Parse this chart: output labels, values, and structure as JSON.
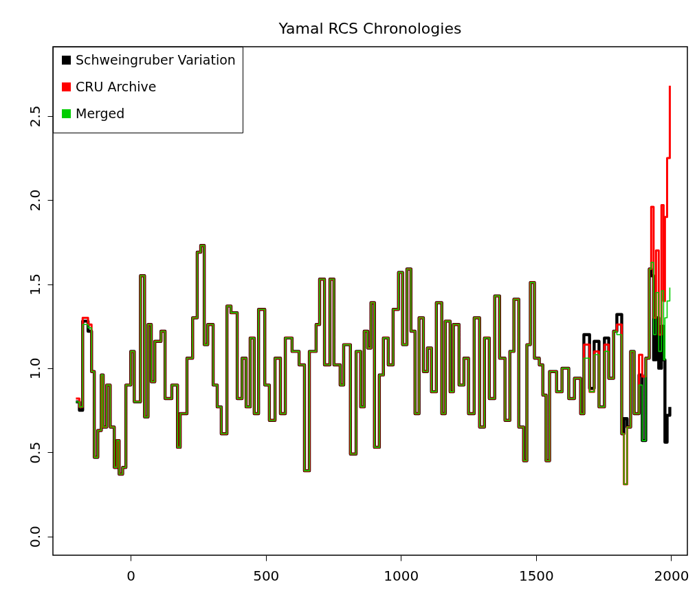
{
  "chart_data": {
    "type": "step",
    "title": "Yamal RCS Chronologies",
    "x": [
      -203,
      -190,
      -178,
      -158,
      -145,
      -135,
      -122,
      -109,
      -102,
      -89,
      -76,
      -61,
      -51,
      -43,
      -30,
      -18,
      0,
      13,
      36,
      51,
      64,
      76,
      89,
      112,
      127,
      152,
      173,
      183,
      208,
      229,
      246,
      259,
      272,
      285,
      305,
      320,
      335,
      356,
      371,
      394,
      412,
      427,
      442,
      457,
      473,
      496,
      513,
      534,
      554,
      572,
      597,
      623,
      643,
      661,
      686,
      699,
      717,
      737,
      752,
      775,
      788,
      813,
      834,
      851,
      864,
      877,
      889,
      902,
      920,
      935,
      953,
      971,
      991,
      1006,
      1022,
      1037,
      1052,
      1067,
      1083,
      1098,
      1113,
      1131,
      1151,
      1164,
      1182,
      1194,
      1215,
      1233,
      1250,
      1271,
      1291,
      1309,
      1327,
      1347,
      1365,
      1385,
      1403,
      1418,
      1436,
      1454,
      1466,
      1479,
      1494,
      1512,
      1525,
      1537,
      1550,
      1576,
      1596,
      1621,
      1642,
      1665,
      1677,
      1698,
      1715,
      1733,
      1753,
      1769,
      1787,
      1799,
      1817,
      1825,
      1837,
      1850,
      1863,
      1881,
      1893,
      1906,
      1919,
      1926,
      1935,
      1944,
      1954,
      1964,
      1972,
      1977,
      1985,
      1995
    ],
    "series": [
      {
        "name": "Schweingruber Variation",
        "color": "#000000",
        "values": [
          0.8,
          0.75,
          1.28,
          1.22,
          0.98,
          0.47,
          0.63,
          0.96,
          0.65,
          0.9,
          0.65,
          0.41,
          0.57,
          0.37,
          0.41,
          0.9,
          1.1,
          0.8,
          1.55,
          0.71,
          1.26,
          0.92,
          1.16,
          1.22,
          0.82,
          0.9,
          0.53,
          0.73,
          1.06,
          1.3,
          1.69,
          1.73,
          1.14,
          1.26,
          0.9,
          0.77,
          0.61,
          1.37,
          1.33,
          0.82,
          1.06,
          0.77,
          1.18,
          0.73,
          1.35,
          0.9,
          0.69,
          1.06,
          0.73,
          1.18,
          1.1,
          1.02,
          0.39,
          1.1,
          1.26,
          1.53,
          1.02,
          1.53,
          1.02,
          0.9,
          1.14,
          0.49,
          1.1,
          0.77,
          1.22,
          1.12,
          1.39,
          0.53,
          0.96,
          1.18,
          1.02,
          1.35,
          1.57,
          1.14,
          1.59,
          1.22,
          0.73,
          1.3,
          0.98,
          1.12,
          0.86,
          1.39,
          0.73,
          1.28,
          0.86,
          1.26,
          0.9,
          1.06,
          0.73,
          1.3,
          0.65,
          1.18,
          0.82,
          1.43,
          1.06,
          0.69,
          1.1,
          1.41,
          0.65,
          0.45,
          1.14,
          1.51,
          1.06,
          1.02,
          0.84,
          0.45,
          0.98,
          0.86,
          1.0,
          0.82,
          0.94,
          0.73,
          1.2,
          0.88,
          1.16,
          0.77,
          1.18,
          0.94,
          1.22,
          1.32,
          0.61,
          0.7,
          0.65,
          1.1,
          0.73,
          0.96,
          0.57,
          1.06,
          1.59,
          1.55,
          1.05,
          1.3,
          1.0,
          1.25,
          1.05,
          0.56,
          0.72,
          0.77
        ]
      },
      {
        "name": "CRU Archive",
        "color": "#ff0000",
        "values": [
          0.82,
          0.77,
          1.3,
          1.26,
          0.98,
          0.47,
          0.63,
          0.96,
          0.65,
          0.9,
          0.65,
          0.41,
          0.57,
          0.37,
          0.41,
          0.9,
          1.1,
          0.8,
          1.55,
          0.71,
          1.26,
          0.92,
          1.16,
          1.22,
          0.82,
          0.9,
          0.53,
          0.73,
          1.06,
          1.3,
          1.69,
          1.73,
          1.14,
          1.26,
          0.9,
          0.77,
          0.61,
          1.37,
          1.33,
          0.82,
          1.06,
          0.77,
          1.18,
          0.73,
          1.35,
          0.9,
          0.69,
          1.06,
          0.73,
          1.18,
          1.1,
          1.02,
          0.39,
          1.1,
          1.26,
          1.53,
          1.02,
          1.53,
          1.02,
          0.9,
          1.14,
          0.49,
          1.1,
          0.77,
          1.22,
          1.12,
          1.39,
          0.53,
          0.96,
          1.18,
          1.02,
          1.35,
          1.57,
          1.14,
          1.59,
          1.22,
          0.73,
          1.3,
          0.98,
          1.12,
          0.86,
          1.39,
          0.73,
          1.28,
          0.86,
          1.26,
          0.9,
          1.06,
          0.73,
          1.3,
          0.65,
          1.18,
          0.82,
          1.43,
          1.06,
          0.69,
          1.1,
          1.41,
          0.65,
          0.45,
          1.14,
          1.51,
          1.06,
          1.02,
          0.84,
          0.45,
          0.98,
          0.86,
          1.0,
          0.82,
          0.94,
          0.73,
          1.14,
          0.86,
          1.1,
          0.77,
          1.14,
          0.94,
          1.22,
          1.26,
          0.61,
          0.31,
          0.65,
          1.1,
          0.73,
          1.08,
          0.95,
          1.06,
          1.59,
          1.96,
          1.3,
          1.7,
          1.2,
          1.97,
          1.4,
          1.9,
          2.25,
          2.68
        ]
      },
      {
        "name": "Merged",
        "color": "#00cd00",
        "values": [
          0.8,
          0.77,
          1.26,
          1.24,
          0.98,
          0.47,
          0.63,
          0.96,
          0.65,
          0.9,
          0.65,
          0.41,
          0.57,
          0.37,
          0.41,
          0.9,
          1.1,
          0.8,
          1.55,
          0.71,
          1.26,
          0.92,
          1.16,
          1.22,
          0.82,
          0.9,
          0.53,
          0.73,
          1.06,
          1.3,
          1.69,
          1.73,
          1.14,
          1.26,
          0.9,
          0.77,
          0.61,
          1.37,
          1.33,
          0.82,
          1.06,
          0.77,
          1.18,
          0.73,
          1.35,
          0.9,
          0.69,
          1.06,
          0.73,
          1.18,
          1.1,
          1.02,
          0.39,
          1.1,
          1.26,
          1.53,
          1.02,
          1.53,
          1.02,
          0.9,
          1.14,
          0.49,
          1.1,
          0.77,
          1.22,
          1.12,
          1.39,
          0.53,
          0.96,
          1.18,
          1.02,
          1.35,
          1.57,
          1.14,
          1.59,
          1.22,
          0.73,
          1.3,
          0.98,
          1.12,
          0.86,
          1.39,
          0.73,
          1.28,
          0.86,
          1.26,
          0.9,
          1.06,
          0.73,
          1.3,
          0.65,
          1.18,
          0.82,
          1.43,
          1.06,
          0.69,
          1.1,
          1.41,
          0.65,
          0.45,
          1.14,
          1.51,
          1.06,
          1.02,
          0.84,
          0.45,
          0.98,
          0.86,
          1.0,
          0.82,
          0.94,
          0.73,
          1.06,
          0.86,
          1.08,
          0.77,
          1.1,
          0.94,
          1.22,
          1.2,
          0.61,
          0.31,
          0.65,
          1.1,
          0.73,
          0.9,
          0.57,
          1.06,
          1.59,
          1.63,
          1.2,
          1.45,
          1.1,
          1.46,
          1.05,
          1.3,
          1.4,
          1.48
        ]
      }
    ],
    "xlim": [
      -288,
      2060
    ],
    "ylim": [
      -0.112,
      2.912
    ],
    "xticks": [
      0,
      500,
      1000,
      1500,
      2000
    ],
    "yticks": [
      {
        "value": 0,
        "label": "0.0"
      },
      {
        "value": 0.5,
        "label": "0.5"
      },
      {
        "value": 1,
        "label": "1.0"
      },
      {
        "value": 1.5,
        "label": "1.5"
      },
      {
        "value": 2,
        "label": "2.0"
      },
      {
        "value": 2.5,
        "label": "2.5"
      }
    ],
    "legend": "top left",
    "grid": false
  }
}
